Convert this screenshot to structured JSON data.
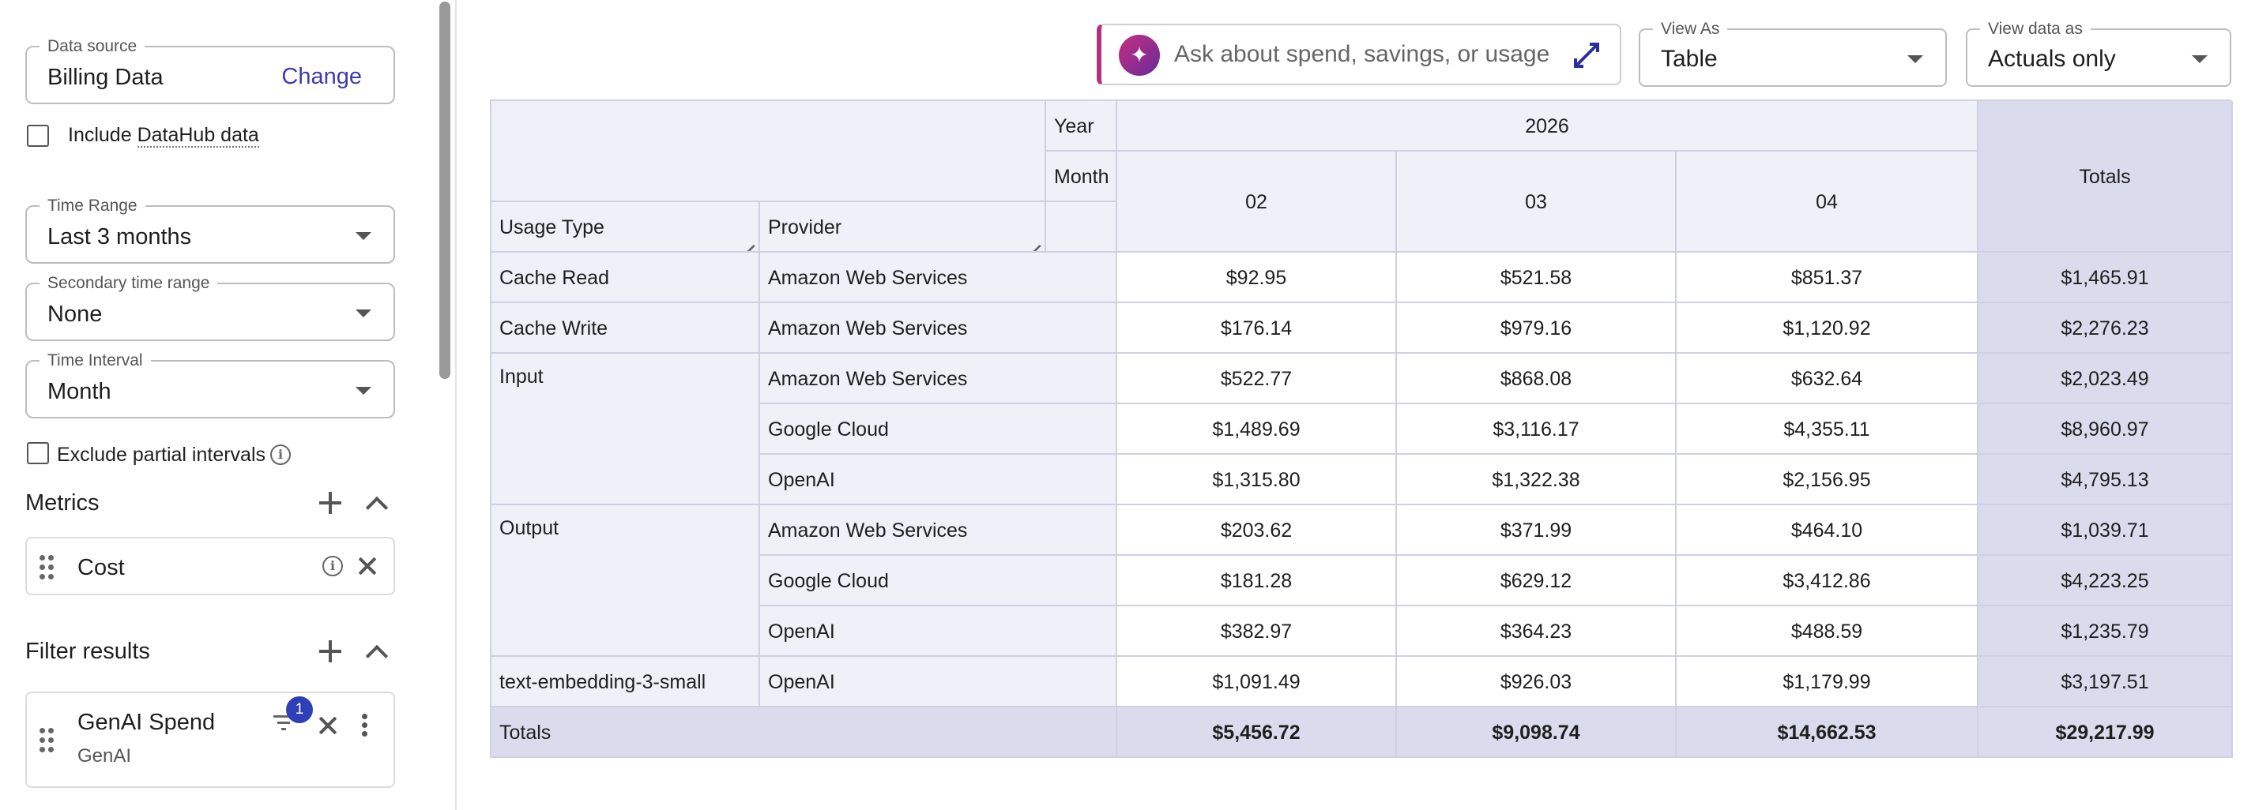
{
  "sidebar": {
    "data_source": {
      "label": "Data source",
      "value": "Billing Data",
      "change_label": "Change"
    },
    "include_datahub": {
      "prefix": "Include ",
      "link": "DataHub data"
    },
    "time_range": {
      "label": "Time Range",
      "value": "Last 3 months"
    },
    "secondary_time_range": {
      "label": "Secondary time range",
      "value": "None"
    },
    "time_interval": {
      "label": "Time Interval",
      "value": "Month"
    },
    "exclude_partial": {
      "label": "Exclude partial intervals"
    },
    "metrics": {
      "title": "Metrics",
      "items": [
        {
          "label": "Cost"
        }
      ]
    },
    "filters": {
      "title": "Filter results",
      "items": [
        {
          "label": "GenAI Spend",
          "sub": "GenAI",
          "badge": "1"
        }
      ]
    }
  },
  "toolbar": {
    "ai_placeholder": "Ask about spend, savings, or usage",
    "view_as": {
      "label": "View As",
      "value": "Table"
    },
    "view_data_as": {
      "label": "View data as",
      "value": "Actuals only"
    }
  },
  "table": {
    "year_label": "Year",
    "month_label": "Month",
    "year": "2026",
    "months": [
      "02",
      "03",
      "04"
    ],
    "totals_label": "Totals",
    "row_headers": [
      "Usage Type",
      "Provider"
    ],
    "groups": [
      {
        "usage_type": "Cache Read",
        "rows": [
          {
            "provider": "Amazon Web Services",
            "values": [
              "$92.95",
              "$521.58",
              "$851.37"
            ],
            "total": "$1,465.91"
          }
        ]
      },
      {
        "usage_type": "Cache Write",
        "rows": [
          {
            "provider": "Amazon Web Services",
            "values": [
              "$176.14",
              "$979.16",
              "$1,120.92"
            ],
            "total": "$2,276.23"
          }
        ]
      },
      {
        "usage_type": "Input",
        "rows": [
          {
            "provider": "Amazon Web Services",
            "values": [
              "$522.77",
              "$868.08",
              "$632.64"
            ],
            "total": "$2,023.49"
          },
          {
            "provider": "Google Cloud",
            "values": [
              "$1,489.69",
              "$3,116.17",
              "$4,355.11"
            ],
            "total": "$8,960.97"
          },
          {
            "provider": "OpenAI",
            "values": [
              "$1,315.80",
              "$1,322.38",
              "$2,156.95"
            ],
            "total": "$4,795.13"
          }
        ]
      },
      {
        "usage_type": "Output",
        "rows": [
          {
            "provider": "Amazon Web Services",
            "values": [
              "$203.62",
              "$371.99",
              "$464.10"
            ],
            "total": "$1,039.71"
          },
          {
            "provider": "Google Cloud",
            "values": [
              "$181.28",
              "$629.12",
              "$3,412.86"
            ],
            "total": "$4,223.25"
          },
          {
            "provider": "OpenAI",
            "values": [
              "$382.97",
              "$364.23",
              "$488.59"
            ],
            "total": "$1,235.79"
          }
        ]
      },
      {
        "usage_type": "text-embedding-3-small",
        "rows": [
          {
            "provider": "OpenAI",
            "values": [
              "$1,091.49",
              "$926.03",
              "$1,179.99"
            ],
            "total": "$3,197.51"
          }
        ]
      }
    ],
    "grand_totals": {
      "label": "Totals",
      "values": [
        "$5,456.72",
        "$9,098.74",
        "$14,662.53"
      ],
      "total": "$29,217.99"
    }
  }
}
